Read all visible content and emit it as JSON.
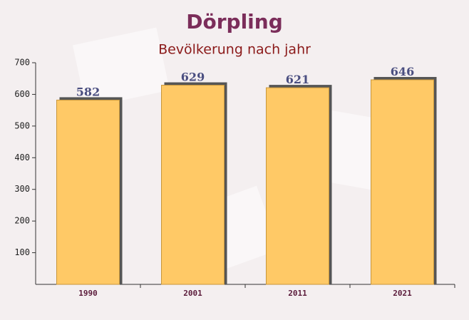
{
  "chart_data": {
    "type": "bar",
    "title": "Dörpling",
    "subtitle": "Bevölkerung nach jahr",
    "categories": [
      "1990",
      "2001",
      "2011",
      "2021"
    ],
    "values": [
      582,
      629,
      621,
      646
    ],
    "color": "#ffc966",
    "ylim": [
      0,
      700
    ],
    "yticks": [
      100,
      200,
      300,
      400,
      500,
      600,
      700
    ]
  }
}
